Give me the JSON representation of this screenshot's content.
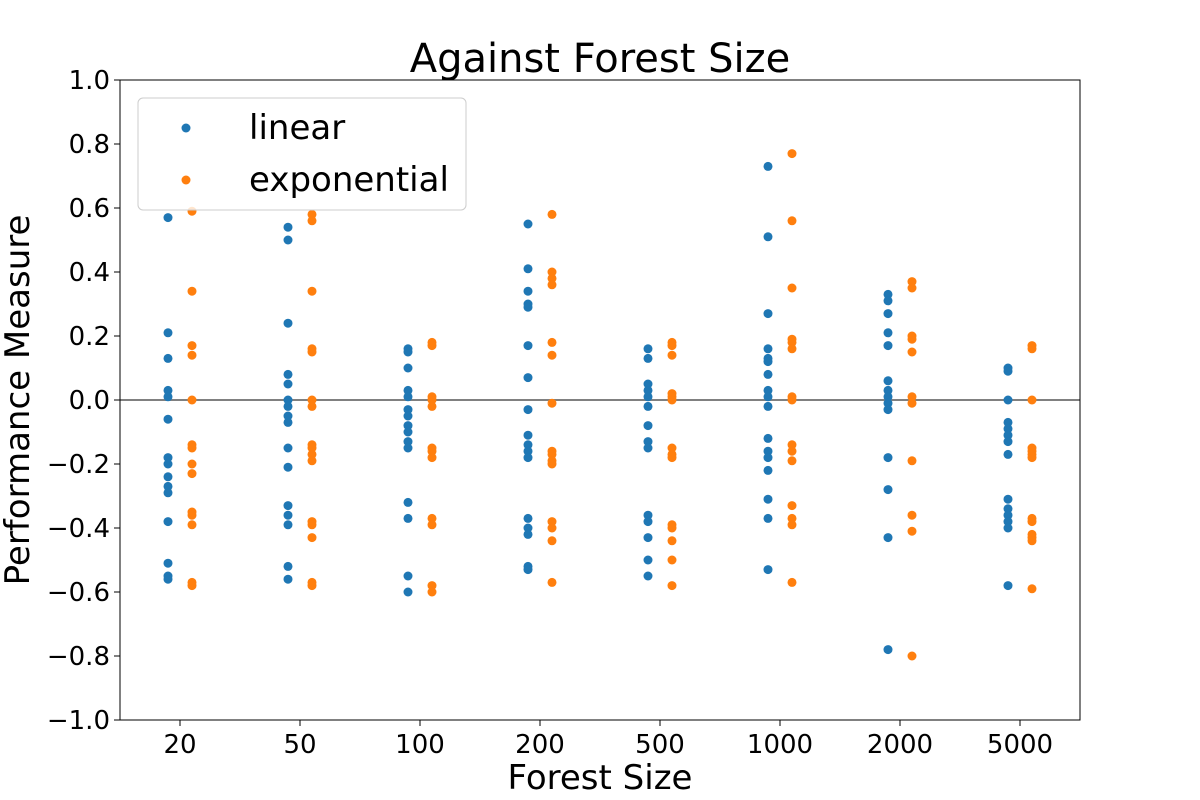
{
  "chart_data": {
    "type": "scatter",
    "title": "Against Forest Size",
    "xlabel": "Forest Size",
    "ylabel": "Performance Measure",
    "categories": [
      "20",
      "50",
      "100",
      "200",
      "500",
      "1000",
      "2000",
      "5000"
    ],
    "ylim": [
      -1.0,
      1.0
    ],
    "yticks": [
      "1.0",
      "0.8",
      "0.6",
      "0.4",
      "0.2",
      "0.0",
      "−0.2",
      "−0.4",
      "−0.6",
      "−0.8",
      "−1.0"
    ],
    "ytick_values": [
      1.0,
      0.8,
      0.6,
      0.4,
      0.2,
      0.0,
      -0.2,
      -0.4,
      -0.6,
      -0.8,
      -1.0
    ],
    "reference_line": 0.0,
    "reference_line_color": "#808080",
    "grid": false,
    "legend_position": "top-left",
    "series": [
      {
        "name": "linear",
        "color": "#1f77b4",
        "values": [
          [
            0.57,
            0.21,
            0.13,
            0.03,
            0.01,
            -0.06,
            -0.18,
            -0.2,
            -0.24,
            -0.27,
            -0.29,
            -0.38,
            -0.51,
            -0.55,
            -0.56
          ],
          [
            0.54,
            0.5,
            0.24,
            0.08,
            0.05,
            0.0,
            -0.02,
            -0.05,
            -0.07,
            -0.15,
            -0.21,
            -0.33,
            -0.36,
            -0.39,
            -0.52,
            -0.56
          ],
          [
            0.16,
            0.15,
            0.1,
            0.03,
            0.01,
            -0.03,
            -0.05,
            -0.08,
            -0.1,
            -0.13,
            -0.15,
            -0.32,
            -0.37,
            -0.55,
            -0.6
          ],
          [
            0.55,
            0.41,
            0.34,
            0.3,
            0.29,
            0.17,
            0.07,
            -0.03,
            -0.11,
            -0.14,
            -0.16,
            -0.18,
            -0.37,
            -0.4,
            -0.42,
            -0.52,
            -0.53
          ],
          [
            0.16,
            0.13,
            0.05,
            0.03,
            0.01,
            -0.02,
            -0.08,
            -0.13,
            -0.15,
            -0.36,
            -0.38,
            -0.43,
            -0.5,
            -0.55
          ],
          [
            0.73,
            0.51,
            0.27,
            0.16,
            0.13,
            0.12,
            0.08,
            0.03,
            0.01,
            -0.02,
            -0.12,
            -0.16,
            -0.18,
            -0.22,
            -0.31,
            -0.37,
            -0.53
          ],
          [
            0.33,
            0.31,
            0.27,
            0.21,
            0.17,
            0.06,
            0.03,
            0.01,
            -0.01,
            -0.03,
            -0.18,
            -0.28,
            -0.43,
            -0.78
          ],
          [
            0.1,
            0.09,
            0.0,
            -0.07,
            -0.09,
            -0.11,
            -0.13,
            -0.17,
            -0.31,
            -0.34,
            -0.36,
            -0.38,
            -0.4,
            -0.58
          ]
        ]
      },
      {
        "name": "exponential",
        "color": "#ff7f0e",
        "values": [
          [
            0.59,
            0.34,
            0.17,
            0.14,
            0.0,
            -0.14,
            -0.15,
            -0.2,
            -0.23,
            -0.35,
            -0.36,
            -0.39,
            -0.57,
            -0.58
          ],
          [
            0.58,
            0.56,
            0.34,
            0.16,
            0.15,
            0.0,
            -0.02,
            -0.14,
            -0.15,
            -0.17,
            -0.19,
            -0.38,
            -0.39,
            -0.43,
            -0.57,
            -0.58
          ],
          [
            0.18,
            0.17,
            0.01,
            0.0,
            -0.02,
            -0.15,
            -0.16,
            -0.18,
            -0.37,
            -0.39,
            -0.58,
            -0.6
          ],
          [
            0.58,
            0.4,
            0.38,
            0.36,
            0.18,
            0.14,
            -0.01,
            -0.16,
            -0.17,
            -0.19,
            -0.2,
            -0.38,
            -0.4,
            -0.44,
            -0.57
          ],
          [
            0.18,
            0.17,
            0.14,
            0.02,
            0.01,
            0.0,
            -0.15,
            -0.17,
            -0.18,
            -0.39,
            -0.4,
            -0.44,
            -0.5,
            -0.58
          ],
          [
            0.77,
            0.56,
            0.35,
            0.19,
            0.18,
            0.16,
            0.01,
            0.0,
            -0.14,
            -0.16,
            -0.19,
            -0.33,
            -0.37,
            -0.39,
            -0.57
          ],
          [
            0.37,
            0.35,
            0.2,
            0.19,
            0.15,
            0.01,
            -0.01,
            -0.19,
            -0.36,
            -0.41,
            -0.8
          ],
          [
            0.17,
            0.16,
            0.0,
            -0.15,
            -0.16,
            -0.17,
            -0.18,
            -0.37,
            -0.38,
            -0.42,
            -0.43,
            -0.44,
            -0.59
          ]
        ]
      }
    ]
  }
}
